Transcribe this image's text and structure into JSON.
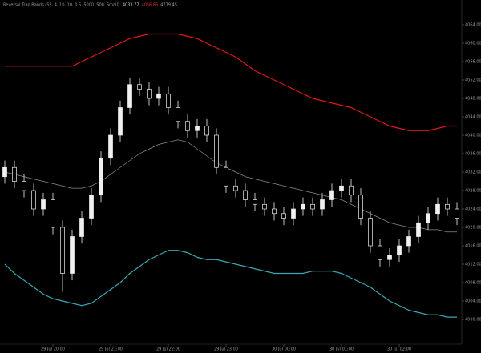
{
  "chart_data": {
    "type": "candlestick",
    "title": "Reversal Trap Bands (55, 4, 10, 10, 0.5, 5000, 500, Small)",
    "header_values": [
      {
        "text": "4033.77",
        "color": "#cfcfcf"
      },
      {
        "text": "4056.85",
        "color": "#e03030"
      },
      {
        "text": "4779.45",
        "color": "#a0a0a0"
      }
    ],
    "categories": [
      null,
      null,
      null,
      null,
      null,
      "29 Jul 20:00",
      null,
      null,
      null,
      null,
      null,
      "29 Jul 21:00",
      null,
      null,
      null,
      null,
      null,
      "29 Jul 22:00",
      null,
      null,
      null,
      null,
      null,
      "29 Jul 23:00",
      null,
      null,
      null,
      null,
      null,
      "30 Jul 00:00",
      null,
      null,
      null,
      null,
      null,
      "30 Jul 01:00",
      null,
      null,
      null,
      null,
      null,
      "30 Jul 02:00",
      null,
      null,
      null,
      null,
      null,
      null
    ],
    "open": [
      4031,
      4033,
      4030,
      4028,
      4024,
      4026,
      4020,
      4010,
      4018,
      4022,
      4027,
      4035,
      4040,
      4046,
      4051,
      4050,
      4048,
      4049,
      4046,
      4043,
      4041,
      4042,
      4040,
      4033,
      4029,
      4028,
      4026,
      4025,
      4024,
      4023,
      4022,
      4024,
      4025,
      4024,
      4026,
      4028,
      4029,
      4027,
      4022,
      4016,
      4013,
      4014,
      4016,
      4018,
      4021,
      4023,
      4025,
      4024
    ],
    "high": [
      4034.5,
      4034.5,
      4031.5,
      4029.5,
      4027.5,
      4027.5,
      4021.5,
      4019.5,
      4023.5,
      4028.5,
      4036.5,
      4041.5,
      4047.5,
      4052.5,
      4052.5,
      4051.5,
      4050.5,
      4050.5,
      4047.5,
      4044.5,
      4043.5,
      4043.5,
      4041.5,
      4034.5,
      4030.5,
      4029.5,
      4027.5,
      4026.5,
      4025.5,
      4024.5,
      4025.5,
      4026.5,
      4026.5,
      4027.5,
      4029.5,
      4030.5,
      4030.5,
      4028.5,
      4023.5,
      4017.5,
      4015.5,
      4017.5,
      4019.5,
      4022.5,
      4024.5,
      4026.5,
      4026.5,
      4025.5
    ],
    "low": [
      4029.5,
      4028.5,
      4026.5,
      4022.5,
      4022.5,
      4018.5,
      4006,
      4008.5,
      4016.5,
      4020.5,
      4025.5,
      4033.5,
      4038.5,
      4044.5,
      4048.5,
      4046.5,
      4046.5,
      4044.5,
      4041.5,
      4039.5,
      4039.5,
      4038.5,
      4031.5,
      4027.5,
      4026.5,
      4024.5,
      4023.5,
      4022.5,
      4021.5,
      4020.5,
      4020.5,
      4022.5,
      4022.5,
      4022.5,
      4024.5,
      4026.5,
      4025.5,
      4020.5,
      4014.5,
      4011.5,
      4011.5,
      4012.5,
      4014.5,
      4016.5,
      4019.5,
      4021.5,
      4022.5,
      4020.5
    ],
    "close": [
      4033,
      4030,
      4028,
      4024,
      4026,
      4020,
      4010,
      4018,
      4022,
      4027,
      4035,
      4040,
      4046,
      4051,
      4050,
      4048,
      4049,
      4046,
      4043,
      4041,
      4042,
      4040,
      4033,
      4029,
      4028,
      4026,
      4025,
      4024,
      4023,
      4022,
      4024,
      4025,
      4024,
      4026,
      4028,
      4029,
      4027,
      4022,
      4016,
      4013,
      4014,
      4016,
      4018,
      4021,
      4023,
      4025,
      4024,
      4022
    ],
    "candle_color": "#f0f0f0",
    "lines": [
      {
        "color": "#e01818",
        "values": [
          4055,
          4055,
          4055,
          4055,
          4055,
          4055,
          4055,
          4055,
          4056,
          4057,
          4058,
          4059,
          4060,
          4061,
          4061.5,
          4062,
          4062,
          4062,
          4062,
          4061.5,
          4061,
          4060,
          4059,
          4058,
          4057,
          4055.5,
          4054,
          4053,
          4052,
          4051,
          4050,
          4049,
          4048,
          4047.5,
          4047,
          4046.5,
          4046,
          4045,
          4044,
          4043,
          4042,
          4041.5,
          4041,
          4041,
          4041,
          4041.5,
          4042,
          4042
        ]
      },
      {
        "color": "#8a8a8a",
        "values": [
          4032,
          4031.5,
          4031,
          4030.5,
          4030,
          4029.5,
          4029,
          4028.5,
          4028.5,
          4029,
          4030,
          4031.5,
          4033,
          4034.5,
          4036,
          4037,
          4038,
          4038.5,
          4039,
          4038.5,
          4037,
          4035.5,
          4034,
          4033,
          4032,
          4031,
          4030.5,
          4030,
          4029.5,
          4029,
          4028.5,
          4028,
          4027.5,
          4027,
          4026.5,
          4026,
          4025,
          4024,
          4023,
          4022,
          4021,
          4020.5,
          4020,
          4020,
          4019.5,
          4019.5,
          4019,
          4019
        ]
      },
      {
        "color": "#3aa6b4",
        "values": [
          4012,
          4010,
          4008.5,
          4007,
          4005.5,
          4004.5,
          4004,
          4003.5,
          4003,
          4003.5,
          4005,
          4006.5,
          4008,
          4010,
          4011.5,
          4013,
          4014,
          4015,
          4015,
          4014.5,
          4013.5,
          4013,
          4013,
          4012.5,
          4012,
          4011.5,
          4011,
          4010.5,
          4010,
          4010,
          4010,
          4010,
          4010.5,
          4010.5,
          4010.5,
          4010,
          4009,
          4008,
          4007,
          4005.5,
          4004,
          4003,
          4002,
          4001.5,
          4001,
          4001,
          4000.5,
          4000.5
        ]
      }
    ],
    "ylim": [
      3996,
      4068
    ],
    "yticks": [
      {
        "value": 4000,
        "label": "4000.00"
      },
      {
        "value": 4004,
        "label": "4004.00"
      },
      {
        "value": 4008,
        "label": "4008.00"
      },
      {
        "value": 4012,
        "label": "4012.00"
      },
      {
        "value": 4016,
        "label": "4016.00"
      },
      {
        "value": 4020,
        "label": "4020.00"
      },
      {
        "value": 4024,
        "label": "4024.00"
      },
      {
        "value": 4028,
        "label": "4028.00"
      },
      {
        "value": 4032,
        "label": "4032.00"
      },
      {
        "value": 4036,
        "label": "4036.00"
      },
      {
        "value": 4040,
        "label": "4040.00"
      },
      {
        "value": 4044,
        "label": "4044.00"
      },
      {
        "value": 4048,
        "label": "4048.00"
      },
      {
        "value": 4052,
        "label": "4052.00"
      },
      {
        "value": 4056,
        "label": "4056.00"
      },
      {
        "value": 4060,
        "label": "4060.00"
      },
      {
        "value": 4064,
        "label": "4064.00"
      }
    ]
  }
}
